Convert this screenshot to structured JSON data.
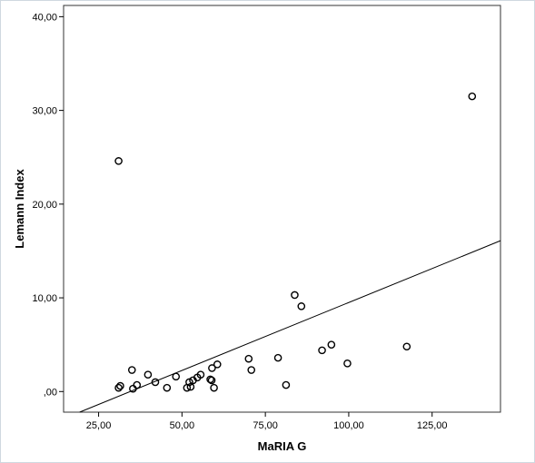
{
  "chart_data": {
    "type": "scatter",
    "xlabel": "MaRIA G",
    "ylabel": "Lemann Index",
    "xlim": [
      14.5,
      145.5
    ],
    "ylim": [
      -2.2,
      41.2
    ],
    "x_ticks": [
      {
        "value": 25,
        "label": "25,00"
      },
      {
        "value": 50,
        "label": "50,00"
      },
      {
        "value": 75,
        "label": "75,00"
      },
      {
        "value": 100,
        "label": "100,00"
      },
      {
        "value": 125,
        "label": "125,00"
      }
    ],
    "y_ticks": [
      {
        "value": 0,
        "label": ",00"
      },
      {
        "value": 10,
        "label": "10,00"
      },
      {
        "value": 20,
        "label": "20,00"
      },
      {
        "value": 30,
        "label": "30,00"
      },
      {
        "value": 40,
        "label": "40,00"
      }
    ],
    "fit_line": {
      "intercept": -5.0,
      "slope": 0.145
    },
    "grid": false,
    "marker_color": "#000000",
    "series": [
      {
        "points": [
          {
            "x": 31.0,
            "y": 24.6
          },
          {
            "x": 137.0,
            "y": 31.5
          },
          {
            "x": 31.0,
            "y": 0.4
          },
          {
            "x": 31.5,
            "y": 0.6
          },
          {
            "x": 35.0,
            "y": 2.3
          },
          {
            "x": 35.3,
            "y": 0.3
          },
          {
            "x": 36.5,
            "y": 0.7
          },
          {
            "x": 39.8,
            "y": 1.8
          },
          {
            "x": 42.0,
            "y": 1.0
          },
          {
            "x": 45.5,
            "y": 0.4
          },
          {
            "x": 48.2,
            "y": 1.6
          },
          {
            "x": 51.5,
            "y": 0.4
          },
          {
            "x": 52.2,
            "y": 1.0
          },
          {
            "x": 52.6,
            "y": 0.5
          },
          {
            "x": 53.3,
            "y": 1.2
          },
          {
            "x": 54.6,
            "y": 1.5
          },
          {
            "x": 55.6,
            "y": 1.8
          },
          {
            "x": 58.5,
            "y": 1.3
          },
          {
            "x": 58.9,
            "y": 1.2
          },
          {
            "x": 59.0,
            "y": 2.5
          },
          {
            "x": 59.6,
            "y": 0.4
          },
          {
            "x": 60.6,
            "y": 2.9
          },
          {
            "x": 70.0,
            "y": 3.5
          },
          {
            "x": 70.8,
            "y": 2.3
          },
          {
            "x": 78.8,
            "y": 3.6
          },
          {
            "x": 81.2,
            "y": 0.7
          },
          {
            "x": 83.8,
            "y": 10.3
          },
          {
            "x": 85.8,
            "y": 9.1
          },
          {
            "x": 92.0,
            "y": 4.4
          },
          {
            "x": 94.8,
            "y": 5.0
          },
          {
            "x": 99.6,
            "y": 3.0
          },
          {
            "x": 117.4,
            "y": 4.8
          }
        ]
      }
    ]
  }
}
